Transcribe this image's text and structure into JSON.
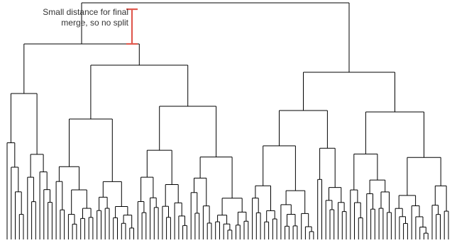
{
  "annotation": {
    "line1": "Small distance for final",
    "line2": "merge, so no split"
  },
  "colors": {
    "tree": "#000000",
    "marker": "#e05a4f"
  },
  "diagram": {
    "type": "dendrogram",
    "leaf_count": 109
  }
}
